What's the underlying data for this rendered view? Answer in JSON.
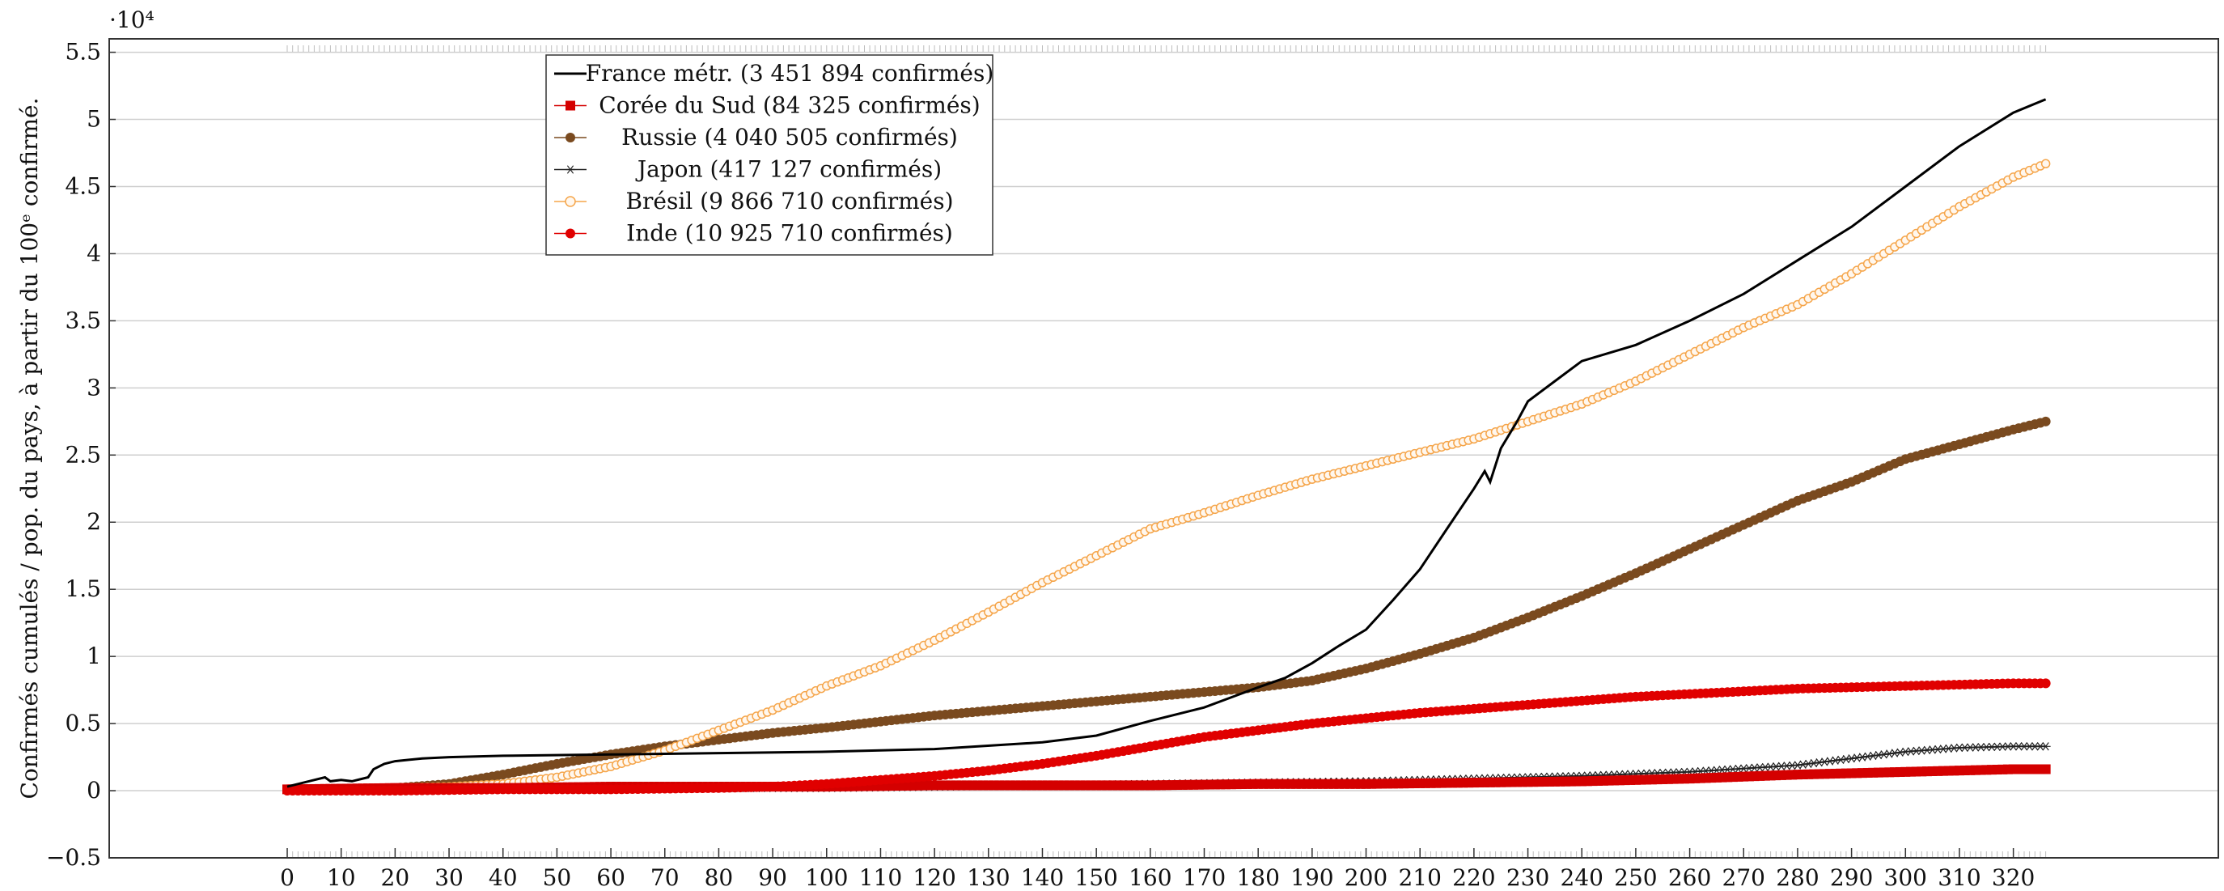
{
  "chart_data": {
    "type": "line",
    "title": "",
    "xlabel": "",
    "ylabel": "Confirmés cumulés / pop. du pays, à partir du 100ᵉ confirmé.",
    "exponent_label": "·10⁴",
    "xlim": [
      -33,
      358
    ],
    "ylim": [
      -0.5,
      5.6
    ],
    "x_ticks": [
      0,
      10,
      20,
      30,
      40,
      50,
      60,
      70,
      80,
      90,
      100,
      110,
      120,
      130,
      140,
      150,
      160,
      170,
      180,
      190,
      200,
      210,
      220,
      230,
      240,
      250,
      260,
      270,
      280,
      290,
      300,
      310,
      320
    ],
    "y_ticks": [
      -0.5,
      0,
      0.5,
      1,
      1.5,
      2,
      2.5,
      3,
      3.5,
      4,
      4.5,
      5,
      5.5
    ],
    "y_tick_labels": [
      "−0.5",
      "0",
      "0.5",
      "1",
      "1.5",
      "2",
      "2.5",
      "3",
      "3.5",
      "4",
      "4.5",
      "5",
      "5.5"
    ],
    "grid": "horizontal",
    "legend_position": "top-left",
    "series": [
      {
        "name": "France métr. (3 451 894 confirmés)",
        "color": "#000000",
        "marker": "none",
        "x": [
          0,
          5,
          7,
          8,
          10,
          12,
          15,
          16,
          18,
          20,
          25,
          30,
          40,
          60,
          80,
          100,
          120,
          140,
          150,
          160,
          170,
          180,
          185,
          190,
          195,
          200,
          205,
          210,
          215,
          220,
          222,
          223,
          225,
          228,
          230,
          235,
          240,
          250,
          260,
          270,
          280,
          290,
          300,
          310,
          320,
          326
        ],
        "y": [
          0.03,
          0.08,
          0.1,
          0.07,
          0.08,
          0.07,
          0.1,
          0.16,
          0.2,
          0.22,
          0.24,
          0.25,
          0.26,
          0.27,
          0.28,
          0.29,
          0.31,
          0.36,
          0.41,
          0.52,
          0.62,
          0.77,
          0.84,
          0.95,
          1.08,
          1.2,
          1.42,
          1.65,
          1.95,
          2.25,
          2.38,
          2.3,
          2.55,
          2.75,
          2.9,
          3.05,
          3.2,
          3.32,
          3.5,
          3.7,
          3.95,
          4.2,
          4.5,
          4.8,
          5.05,
          5.15
        ]
      },
      {
        "name": "Corée du Sud (84 325 confirmés)",
        "color": "#d40000",
        "marker": "square",
        "x": [
          0,
          20,
          40,
          60,
          80,
          100,
          120,
          140,
          160,
          180,
          200,
          220,
          240,
          260,
          280,
          300,
          320,
          326
        ],
        "y": [
          0.01,
          0.02,
          0.02,
          0.03,
          0.03,
          0.03,
          0.04,
          0.04,
          0.04,
          0.05,
          0.05,
          0.06,
          0.07,
          0.09,
          0.12,
          0.14,
          0.16,
          0.16
        ]
      },
      {
        "name": "Russie (4 040 505 confirmés)",
        "color": "#7a4a1f",
        "marker": "circle",
        "x": [
          0,
          10,
          20,
          30,
          40,
          50,
          60,
          70,
          80,
          90,
          100,
          120,
          140,
          160,
          180,
          190,
          200,
          210,
          220,
          230,
          240,
          250,
          260,
          270,
          280,
          290,
          300,
          310,
          320,
          326
        ],
        "y": [
          0.01,
          0.01,
          0.02,
          0.05,
          0.12,
          0.2,
          0.27,
          0.33,
          0.38,
          0.43,
          0.47,
          0.56,
          0.63,
          0.7,
          0.77,
          0.82,
          0.91,
          1.02,
          1.14,
          1.29,
          1.45,
          1.62,
          1.8,
          1.98,
          2.16,
          2.3,
          2.47,
          2.58,
          2.69,
          2.75
        ]
      },
      {
        "name": "Japon (417 127 confirmés)",
        "color": "#222222",
        "marker": "star",
        "x": [
          0,
          20,
          40,
          60,
          80,
          100,
          120,
          140,
          160,
          180,
          200,
          220,
          240,
          260,
          280,
          290,
          300,
          310,
          320,
          326
        ],
        "y": [
          0.01,
          0.01,
          0.01,
          0.01,
          0.02,
          0.02,
          0.03,
          0.04,
          0.05,
          0.06,
          0.07,
          0.09,
          0.11,
          0.14,
          0.19,
          0.24,
          0.29,
          0.32,
          0.33,
          0.33
        ]
      },
      {
        "name": "Brésil (9 866 710 confirmés)",
        "color": "#f5a54a",
        "marker": "circle-open",
        "x": [
          0,
          20,
          30,
          40,
          50,
          60,
          70,
          80,
          90,
          100,
          110,
          120,
          130,
          140,
          150,
          160,
          170,
          180,
          190,
          200,
          210,
          220,
          230,
          240,
          250,
          260,
          270,
          280,
          290,
          300,
          310,
          320,
          326
        ],
        "y": [
          0.01,
          0.02,
          0.03,
          0.05,
          0.1,
          0.18,
          0.3,
          0.45,
          0.6,
          0.78,
          0.93,
          1.12,
          1.33,
          1.55,
          1.75,
          1.95,
          2.07,
          2.2,
          2.32,
          2.42,
          2.52,
          2.62,
          2.75,
          2.88,
          3.05,
          3.25,
          3.45,
          3.62,
          3.85,
          4.1,
          4.35,
          4.57,
          4.67
        ]
      },
      {
        "name": "Inde (10 925 710 confirmés)",
        "color": "#e00000",
        "marker": "circle",
        "x": [
          0,
          20,
          40,
          60,
          80,
          90,
          100,
          110,
          120,
          130,
          140,
          150,
          160,
          170,
          180,
          190,
          200,
          210,
          220,
          230,
          240,
          250,
          260,
          270,
          280,
          290,
          300,
          310,
          320,
          326
        ],
        "y": [
          0.0,
          0.0,
          0.01,
          0.01,
          0.02,
          0.03,
          0.05,
          0.08,
          0.11,
          0.15,
          0.2,
          0.26,
          0.33,
          0.4,
          0.45,
          0.5,
          0.54,
          0.58,
          0.61,
          0.64,
          0.67,
          0.7,
          0.72,
          0.74,
          0.76,
          0.77,
          0.78,
          0.79,
          0.8,
          0.8
        ]
      }
    ]
  }
}
